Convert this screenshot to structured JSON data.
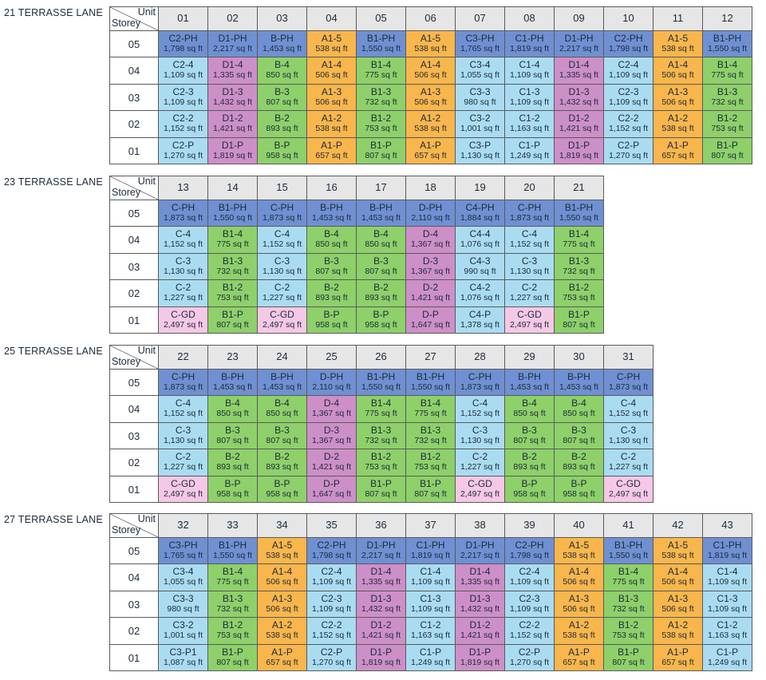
{
  "blocks": [
    {
      "title": "21 TERRASSE LANE",
      "unit_label": "Unit",
      "storey_label": "Storey",
      "units": [
        "01",
        "02",
        "03",
        "04",
        "05",
        "06",
        "07",
        "08",
        "09",
        "10",
        "11",
        "12"
      ],
      "rows": [
        {
          "storey": "05",
          "cells": [
            [
              "C2-PH",
              "1,798 sq ft"
            ],
            [
              "D1-PH",
              "2,217 sq ft"
            ],
            [
              "B-PH",
              "1,453 sq ft"
            ],
            [
              "A1-5",
              "538 sq ft"
            ],
            [
              "B1-PH",
              "1,550 sq ft"
            ],
            [
              "A1-5",
              "538 sq ft"
            ],
            [
              "C3-PH",
              "1,765 sq ft"
            ],
            [
              "C1-PH",
              "1,819 sq ft"
            ],
            [
              "D1-PH",
              "2,217 sq ft"
            ],
            [
              "C2-PH",
              "1,798 sq ft"
            ],
            [
              "A1-5",
              "538 sq ft"
            ],
            [
              "B1-PH",
              "1,550 sq ft"
            ]
          ]
        },
        {
          "storey": "04",
          "cells": [
            [
              "C2-4",
              "1,109 sq ft"
            ],
            [
              "D1-4",
              "1,335 sq ft"
            ],
            [
              "B-4",
              "850 sq ft"
            ],
            [
              "A1-4",
              "506 sq ft"
            ],
            [
              "B1-4",
              "775 sq ft"
            ],
            [
              "A1-4",
              "506 sq ft"
            ],
            [
              "C3-4",
              "1,055 sq ft"
            ],
            [
              "C1-4",
              "1,109 sq ft"
            ],
            [
              "D1-4",
              "1,335 sq ft"
            ],
            [
              "C2-4",
              "1,109 sq ft"
            ],
            [
              "A1-4",
              "506 sq ft"
            ],
            [
              "B1-4",
              "775 sq ft"
            ]
          ]
        },
        {
          "storey": "03",
          "cells": [
            [
              "C2-3",
              "1,109 sq ft"
            ],
            [
              "D1-3",
              "1,432 sq ft"
            ],
            [
              "B-3",
              "807 sq ft"
            ],
            [
              "A1-3",
              "506 sq ft"
            ],
            [
              "B1-3",
              "732 sq ft"
            ],
            [
              "A1-3",
              "506 sq ft"
            ],
            [
              "C3-3",
              "980 sq ft"
            ],
            [
              "C1-3",
              "1,109 sq ft"
            ],
            [
              "D1-3",
              "1,432 sq ft"
            ],
            [
              "C2-3",
              "1,109 sq ft"
            ],
            [
              "A1-3",
              "506 sq ft"
            ],
            [
              "B1-3",
              "732 sq ft"
            ]
          ]
        },
        {
          "storey": "02",
          "cells": [
            [
              "C2-2",
              "1,152 sq ft"
            ],
            [
              "D1-2",
              "1,421 sq ft"
            ],
            [
              "B-2",
              "893 sq ft"
            ],
            [
              "A1-2",
              "538 sq ft"
            ],
            [
              "B1-2",
              "753 sq ft"
            ],
            [
              "A1-2",
              "538 sq ft"
            ],
            [
              "C3-2",
              "1,001 sq ft"
            ],
            [
              "C1-2",
              "1,163 sq ft"
            ],
            [
              "D1-2",
              "1,421 sq ft"
            ],
            [
              "C2-2",
              "1,152 sq ft"
            ],
            [
              "A1-2",
              "538 sq ft"
            ],
            [
              "B1-2",
              "753 sq ft"
            ]
          ]
        },
        {
          "storey": "01",
          "cells": [
            [
              "C2-P",
              "1,270 sq ft"
            ],
            [
              "D1-P",
              "1,819 sq ft"
            ],
            [
              "B-P",
              "958 sq ft"
            ],
            [
              "A1-P",
              "657 sq ft"
            ],
            [
              "B1-P",
              "807 sq ft"
            ],
            [
              "A1-P",
              "657 sq ft"
            ],
            [
              "C3-P",
              "1,130 sq ft"
            ],
            [
              "C1-P",
              "1,249 sq ft"
            ],
            [
              "D1-P",
              "1,819 sq ft"
            ],
            [
              "C2-P",
              "1,270 sq ft"
            ],
            [
              "A1-P",
              "657 sq ft"
            ],
            [
              "B1-P",
              "807 sq ft"
            ]
          ]
        }
      ]
    },
    {
      "title": "23 TERRASSE LANE",
      "unit_label": "Unit",
      "storey_label": "Storey",
      "units": [
        "13",
        "14",
        "15",
        "16",
        "17",
        "18",
        "19",
        "20",
        "21"
      ],
      "rows": [
        {
          "storey": "05",
          "cells": [
            [
              "C-PH",
              "1,873 sq ft"
            ],
            [
              "B1-PH",
              "1,550 sq ft"
            ],
            [
              "C-PH",
              "1,873 sq ft"
            ],
            [
              "B-PH",
              "1,453 sq ft"
            ],
            [
              "B-PH",
              "1,453 sq ft"
            ],
            [
              "D-PH",
              "2,110 sq ft"
            ],
            [
              "C4-PH",
              "1,884 sq ft"
            ],
            [
              "C-PH",
              "1,873 sq ft"
            ],
            [
              "B1-PH",
              "1,550 sq ft"
            ]
          ]
        },
        {
          "storey": "04",
          "cells": [
            [
              "C-4",
              "1,152 sq ft"
            ],
            [
              "B1-4",
              "775 sq ft"
            ],
            [
              "C-4",
              "1,152 sq ft"
            ],
            [
              "B-4",
              "850 sq ft"
            ],
            [
              "B-4",
              "850 sq ft"
            ],
            [
              "D-4",
              "1,367 sq ft"
            ],
            [
              "C4-4",
              "1,076 sq ft"
            ],
            [
              "C-4",
              "1,152 sq ft"
            ],
            [
              "B1-4",
              "775 sq ft"
            ]
          ]
        },
        {
          "storey": "03",
          "cells": [
            [
              "C-3",
              "1,130 sq ft"
            ],
            [
              "B1-3",
              "732 sq ft"
            ],
            [
              "C-3",
              "1,130 sq ft"
            ],
            [
              "B-3",
              "807 sq ft"
            ],
            [
              "B-3",
              "807 sq ft"
            ],
            [
              "D-3",
              "1,367 sq ft"
            ],
            [
              "C4-3",
              "990 sq ft"
            ],
            [
              "C-3",
              "1,130 sq ft"
            ],
            [
              "B1-3",
              "732 sq ft"
            ]
          ]
        },
        {
          "storey": "02",
          "cells": [
            [
              "C-2",
              "1,227 sq ft"
            ],
            [
              "B1-2",
              "753 sq ft"
            ],
            [
              "C-2",
              "1,227 sq ft"
            ],
            [
              "B-2",
              "893 sq ft"
            ],
            [
              "B-2",
              "893 sq ft"
            ],
            [
              "D-2",
              "1,421 sq ft"
            ],
            [
              "C4-2",
              "1,076 sq ft"
            ],
            [
              "C-2",
              "1,227 sq ft"
            ],
            [
              "B1-2",
              "753 sq ft"
            ]
          ]
        },
        {
          "storey": "01",
          "cells": [
            [
              "C-GD",
              "2,497 sq ft"
            ],
            [
              "B1-P",
              "807 sq ft"
            ],
            [
              "C-GD",
              "2,497 sq ft"
            ],
            [
              "B-P",
              "958 sq ft"
            ],
            [
              "B-P",
              "958 sq ft"
            ],
            [
              "D-P",
              "1,647 sq ft"
            ],
            [
              "C4-P",
              "1,378 sq ft"
            ],
            [
              "C-GD",
              "2,497 sq ft"
            ],
            [
              "B1-P",
              "807 sq ft"
            ]
          ]
        }
      ]
    },
    {
      "title": "25 TERRASSE LANE",
      "unit_label": "Unit",
      "storey_label": "Storey",
      "units": [
        "22",
        "23",
        "24",
        "25",
        "26",
        "27",
        "28",
        "29",
        "30",
        "31"
      ],
      "rows": [
        {
          "storey": "05",
          "cells": [
            [
              "C-PH",
              "1,873 sq ft"
            ],
            [
              "B-PH",
              "1,453 sq ft"
            ],
            [
              "B-PH",
              "1,453 sq ft"
            ],
            [
              "D-PH",
              "2,110 sq ft"
            ],
            [
              "B1-PH",
              "1,550 sq ft"
            ],
            [
              "B1-PH",
              "1,550 sq ft"
            ],
            [
              "C-PH",
              "1,873 sq ft"
            ],
            [
              "B-PH",
              "1,453 sq ft"
            ],
            [
              "B-PH",
              "1,453 sq ft"
            ],
            [
              "C-PH",
              "1,873 sq ft"
            ]
          ]
        },
        {
          "storey": "04",
          "cells": [
            [
              "C-4",
              "1,152 sq ft"
            ],
            [
              "B-4",
              "850 sq ft"
            ],
            [
              "B-4",
              "850 sq ft"
            ],
            [
              "D-4",
              "1,367 sq ft"
            ],
            [
              "B1-4",
              "775 sq ft"
            ],
            [
              "B1-4",
              "775 sq ft"
            ],
            [
              "C-4",
              "1,152 sq ft"
            ],
            [
              "B-4",
              "850 sq ft"
            ],
            [
              "B-4",
              "850 sq ft"
            ],
            [
              "C-4",
              "1,152 sq ft"
            ]
          ]
        },
        {
          "storey": "03",
          "cells": [
            [
              "C-3",
              "1,130 sq ft"
            ],
            [
              "B-3",
              "807 sq ft"
            ],
            [
              "B-3",
              "807 sq ft"
            ],
            [
              "D-3",
              "1,367 sq ft"
            ],
            [
              "B1-3",
              "732 sq ft"
            ],
            [
              "B1-3",
              "732 sq ft"
            ],
            [
              "C-3",
              "1,130 sq ft"
            ],
            [
              "B-3",
              "807 sq ft"
            ],
            [
              "B-3",
              "807 sq ft"
            ],
            [
              "C-3",
              "1,130 sq ft"
            ]
          ]
        },
        {
          "storey": "02",
          "cells": [
            [
              "C-2",
              "1,227 sq ft"
            ],
            [
              "B-2",
              "893 sq ft"
            ],
            [
              "B-2",
              "893 sq ft"
            ],
            [
              "D-2",
              "1,421 sq ft"
            ],
            [
              "B1-2",
              "753 sq ft"
            ],
            [
              "B1-2",
              "753 sq ft"
            ],
            [
              "C-2",
              "1,227 sq ft"
            ],
            [
              "B-2",
              "893 sq ft"
            ],
            [
              "B-2",
              "893 sq ft"
            ],
            [
              "C-2",
              "1,227 sq ft"
            ]
          ]
        },
        {
          "storey": "01",
          "cells": [
            [
              "C-GD",
              "2,497 sq ft"
            ],
            [
              "B-P",
              "958 sq ft"
            ],
            [
              "B-P",
              "958 sq ft"
            ],
            [
              "D-P",
              "1,647 sq ft"
            ],
            [
              "B1-P",
              "807 sq ft"
            ],
            [
              "B1-P",
              "807 sq ft"
            ],
            [
              "C-GD",
              "2,497 sq ft"
            ],
            [
              "B-P",
              "958 sq ft"
            ],
            [
              "B-P",
              "958 sq ft"
            ],
            [
              "C-GD",
              "2,497 sq ft"
            ]
          ]
        }
      ]
    },
    {
      "title": "27 TERRASSE LANE",
      "unit_label": "Unit",
      "storey_label": "Storey",
      "units": [
        "32",
        "33",
        "34",
        "35",
        "36",
        "37",
        "38",
        "39",
        "40",
        "41",
        "42",
        "43"
      ],
      "rows": [
        {
          "storey": "05",
          "cells": [
            [
              "C3-PH",
              "1,765 sq ft"
            ],
            [
              "B1-PH",
              "1,550 sq ft"
            ],
            [
              "A1-5",
              "538 sq ft"
            ],
            [
              "C2-PH",
              "1,798 sq ft"
            ],
            [
              "D1-PH",
              "2,217 sq ft"
            ],
            [
              "C1-PH",
              "1,819 sq ft"
            ],
            [
              "D1-PH",
              "2,217 sq ft"
            ],
            [
              "C2-PH",
              "1,798 sq ft"
            ],
            [
              "A1-5",
              "538 sq ft"
            ],
            [
              "B1-PH",
              "1,550 sq ft"
            ],
            [
              "A1-5",
              "538 sq ft"
            ],
            [
              "C1-PH",
              "1,819 sq ft"
            ]
          ]
        },
        {
          "storey": "04",
          "cells": [
            [
              "C3-4",
              "1,055 sq ft"
            ],
            [
              "B1-4",
              "775 sq ft"
            ],
            [
              "A1-4",
              "506 sq ft"
            ],
            [
              "C2-4",
              "1,109 sq ft"
            ],
            [
              "D1-4",
              "1,335 sq ft"
            ],
            [
              "C1-4",
              "1,109 sq ft"
            ],
            [
              "D1-4",
              "1,335 sq ft"
            ],
            [
              "C2-4",
              "1,109 sq ft"
            ],
            [
              "A1-4",
              "506 sq ft"
            ],
            [
              "B1-4",
              "775 sq ft"
            ],
            [
              "A1-4",
              "506 sq ft"
            ],
            [
              "C1-4",
              "1,109 sq ft"
            ]
          ]
        },
        {
          "storey": "03",
          "cells": [
            [
              "C3-3",
              "980 sq ft"
            ],
            [
              "B1-3",
              "732 sq ft"
            ],
            [
              "A1-3",
              "506 sq ft"
            ],
            [
              "C2-3",
              "1,109 sq ft"
            ],
            [
              "D1-3",
              "1,432 sq ft"
            ],
            [
              "C1-3",
              "1,109 sq ft"
            ],
            [
              "D1-3",
              "1,432 sq ft"
            ],
            [
              "C2-3",
              "1,109 sq ft"
            ],
            [
              "A1-3",
              "506 sq ft"
            ],
            [
              "B1-3",
              "732 sq ft"
            ],
            [
              "A1-3",
              "506 sq ft"
            ],
            [
              "C1-3",
              "1,109 sq ft"
            ]
          ]
        },
        {
          "storey": "02",
          "cells": [
            [
              "C3-2",
              "1,001 sq ft"
            ],
            [
              "B1-2",
              "753 sq ft"
            ],
            [
              "A1-2",
              "538 sq ft"
            ],
            [
              "C2-2",
              "1,152 sq ft"
            ],
            [
              "D1-2",
              "1,421 sq ft"
            ],
            [
              "C1-2",
              "1,163 sq ft"
            ],
            [
              "D1-2",
              "1,421 sq ft"
            ],
            [
              "C2-2",
              "1,152 sq ft"
            ],
            [
              "A1-2",
              "538 sq ft"
            ],
            [
              "B1-2",
              "753 sq ft"
            ],
            [
              "A1-2",
              "538 sq ft"
            ],
            [
              "C1-2",
              "1,163 sq ft"
            ]
          ]
        },
        {
          "storey": "01",
          "cells": [
            [
              "C3-P1",
              "1,087 sq ft"
            ],
            [
              "B1-P",
              "807 sq ft"
            ],
            [
              "A1-P",
              "657 sq ft"
            ],
            [
              "C2-P",
              "1,270 sq ft"
            ],
            [
              "D1-P",
              "1,819 sq ft"
            ],
            [
              "C1-P",
              "1,249 sq ft"
            ],
            [
              "D1-P",
              "1,819 sq ft"
            ],
            [
              "C2-P",
              "1,270 sq ft"
            ],
            [
              "A1-P",
              "657 sq ft"
            ],
            [
              "B1-P",
              "807 sq ft"
            ],
            [
              "A1-P",
              "657 sq ft"
            ],
            [
              "C1-P",
              "1,249 sq ft"
            ]
          ]
        }
      ]
    }
  ]
}
